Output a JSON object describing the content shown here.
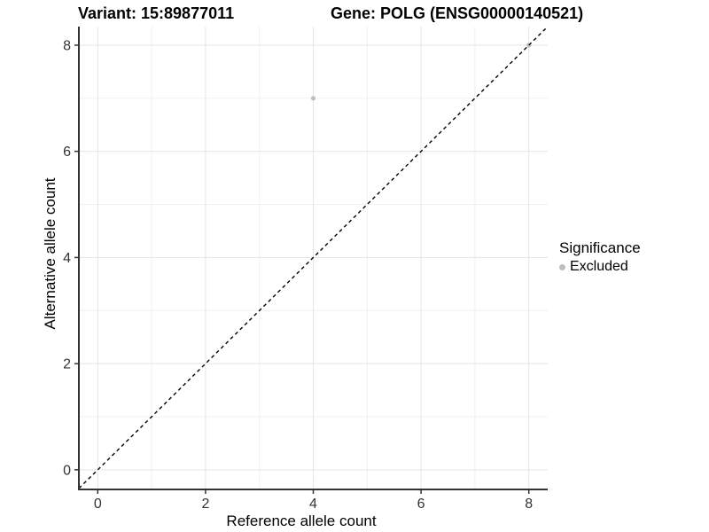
{
  "titles": {
    "variant": "Variant: 15:89877011",
    "gene": "Gene: POLG (ENSG00000140521)"
  },
  "chart_data": {
    "type": "scatter",
    "title_left": "Variant: 15:89877011",
    "title_right": "Gene: POLG (ENSG00000140521)",
    "xlabel": "Reference allele count",
    "ylabel": "Alternative allele count",
    "xlim": [
      -0.35,
      8.35
    ],
    "ylim": [
      -0.37,
      8.35
    ],
    "x_ticks": [
      0,
      2,
      4,
      6,
      8
    ],
    "y_ticks": [
      0,
      2,
      4,
      6,
      8
    ],
    "x_minor_ticks": [
      1,
      3,
      5,
      7
    ],
    "y_minor_ticks": [
      1,
      3,
      5,
      7
    ],
    "grid": "on",
    "points": [
      {
        "x": 4,
        "y": 7,
        "group": "Excluded"
      },
      {
        "x": 8,
        "y": 8,
        "group": "Excluded"
      }
    ],
    "identity_line": {
      "type": "abline",
      "slope": 1,
      "intercept": 0,
      "style": "dashed",
      "color": "#000000"
    },
    "legend": {
      "title": "Significance",
      "position": "right",
      "entries": [
        {
          "label": "Excluded",
          "color": "#bebebe"
        }
      ]
    },
    "colors": {
      "point_excluded": "#bebebe",
      "grid_major": "#e5e5e5",
      "grid_minor": "#f0f0f0",
      "axis_line": "#333333",
      "tick_label": "#333333"
    }
  }
}
